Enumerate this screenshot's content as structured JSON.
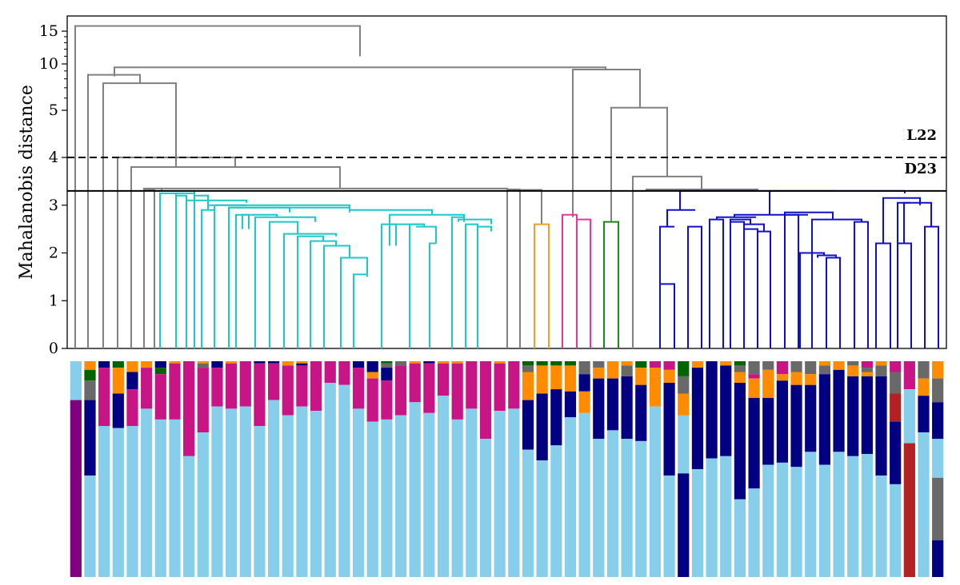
{
  "chart_data": {
    "type": "dendrogram",
    "ylabel": "Mahalanobis distance",
    "y_ticks": [
      {
        "label": "0",
        "value": 0
      },
      {
        "label": "1",
        "value": 1
      },
      {
        "label": "2",
        "value": 2
      },
      {
        "label": "3",
        "value": 3
      },
      {
        "label": "4",
        "value": 4
      },
      {
        "label": "5",
        "value": 5
      },
      {
        "label": "10",
        "value": 10
      },
      {
        "label": "15",
        "value": 15
      }
    ],
    "y_scale": "piecewise: linear 0-4, log above 4",
    "reference_lines": [
      {
        "label": "L22",
        "value": 4.0,
        "style": "dashed"
      },
      {
        "label": "D23",
        "value": 3.3,
        "style": "solid"
      }
    ],
    "cluster_colors": {
      "default": "#808080",
      "cyan": "#1cc8c8",
      "orange": "#f0a020",
      "pink": "#e8369a",
      "green": "#1a8a1a",
      "blue": "#1010cc"
    },
    "leaf_count": 62,
    "links": [
      [
        0,
        0,
        16.0,
        1
      ],
      [
        1,
        0,
        8.5,
        0
      ],
      [
        2,
        0,
        7.5,
        0
      ],
      [
        3,
        0,
        4.0,
        0
      ],
      [
        4,
        0,
        3.8,
        0
      ],
      [
        4.6,
        0,
        3.35,
        0
      ],
      [
        4.6,
        3.35,
        3.35,
        7.2
      ],
      [
        7.2,
        0,
        3.3,
        0
      ],
      [
        6.0,
        3.3,
        3.3,
        7.2
      ],
      [
        8.8,
        0,
        3.25,
        26.8
      ],
      [
        31.1,
        0,
        3.32,
        32
      ],
      [
        32,
        3.32,
        3.32,
        33.5
      ],
      [
        34.2,
        0,
        2.6,
        0
      ],
      [
        36.0,
        0,
        2.8,
        0
      ],
      [
        38.4,
        0,
        2.65,
        0
      ],
      [
        39.6,
        0,
        9.5,
        0
      ],
      [
        42.4,
        0,
        3.2,
        0
      ],
      [
        44.0,
        0,
        3.25,
        0
      ],
      [
        42.4,
        3.32,
        3.32,
        44.0
      ],
      [
        42.4,
        3.32,
        3.8,
        42.4
      ]
    ],
    "composition_bars": {
      "count": 62,
      "description": "stacked composition bars, one per leaf"
    },
    "composition_colors": {
      "purple": "#800080",
      "magenta": "#c71585",
      "light_blue": "#87ceeb",
      "navy": "#000080",
      "orange": "#ff8c00",
      "gray": "#696969",
      "dark_green": "#006400",
      "red": "#b22222"
    }
  }
}
